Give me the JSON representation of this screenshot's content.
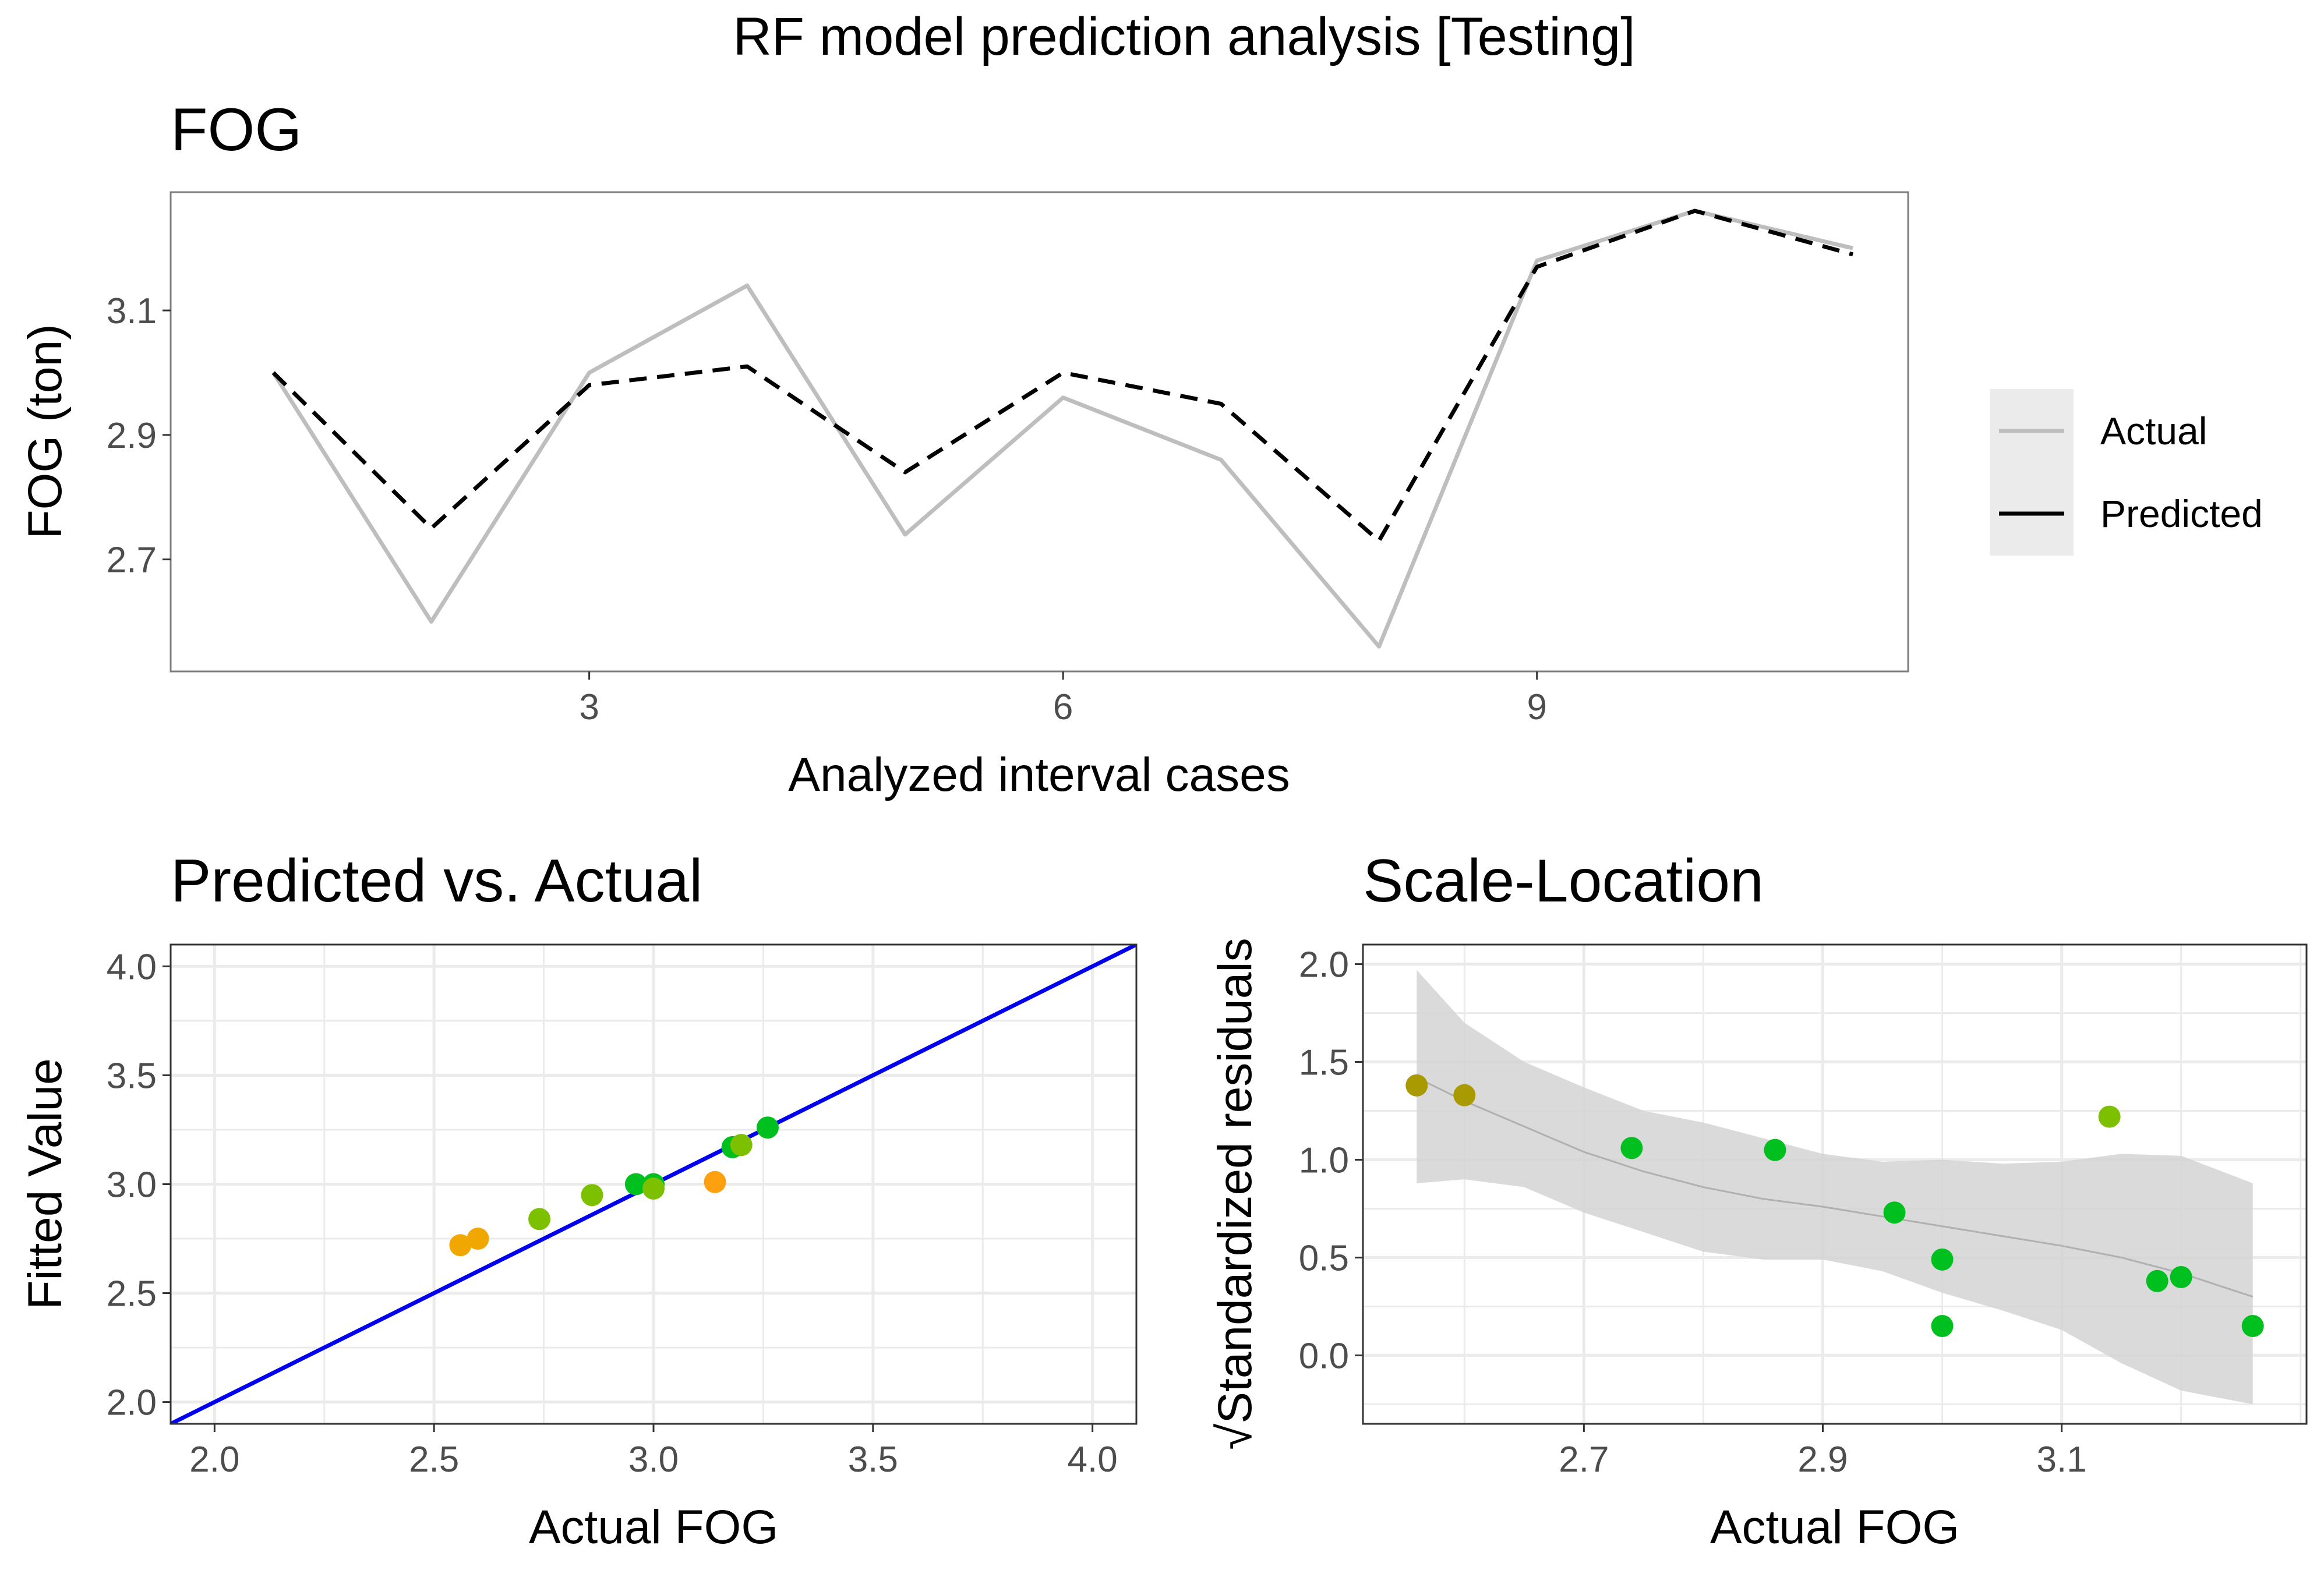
{
  "title": "RF model prediction analysis [Testing]",
  "colors": {
    "actual_line": "#bebebe",
    "predicted_line": "#000000",
    "identity_line": "#0000ee",
    "ribbon": "#d3d3d3",
    "smooth_line": "#b0b0b0"
  },
  "chart_data": [
    {
      "type": "line",
      "title": "FOG",
      "xlabel": "Analyzed interval cases",
      "ylabel": "FOG (ton)",
      "xlim": [
        0.35,
        11.35
      ],
      "ylim": [
        2.52,
        3.29
      ],
      "x_ticks": [
        3,
        6,
        9
      ],
      "x_tick_labels": [
        "3",
        "6",
        "9"
      ],
      "y_ticks": [
        2.7,
        2.9,
        3.1
      ],
      "y_tick_labels": [
        "2.7",
        "2.9",
        "3.1"
      ],
      "x": [
        1,
        2,
        3,
        4,
        5,
        6,
        7,
        8,
        9,
        10,
        11
      ],
      "series": [
        {
          "name": "Actual",
          "style": "solid",
          "values": [
            3.0,
            2.6,
            3.0,
            3.14,
            2.74,
            2.96,
            2.86,
            2.56,
            3.18,
            3.26,
            3.2
          ]
        },
        {
          "name": "Predicted",
          "style": "dashed",
          "values": [
            3.0,
            2.75,
            2.98,
            3.01,
            2.84,
            3.0,
            2.95,
            2.73,
            3.17,
            3.26,
            3.19
          ]
        }
      ],
      "legend": {
        "position": "right",
        "entries": [
          "Actual",
          "Predicted"
        ]
      },
      "grid": true
    },
    {
      "type": "scatter",
      "title": "Predicted vs. Actual",
      "xlabel": "Actual FOG",
      "ylabel": "Fitted Value",
      "xlim": [
        1.9,
        4.1
      ],
      "ylim": [
        1.9,
        4.1
      ],
      "x_ticks": [
        2.0,
        2.5,
        3.0,
        3.5,
        4.0
      ],
      "x_tick_labels": [
        "2.0",
        "2.5",
        "3.0",
        "3.5",
        "4.0"
      ],
      "y_ticks": [
        2.0,
        2.5,
        3.0,
        3.5,
        4.0
      ],
      "y_tick_labels": [
        "2.0",
        "2.5",
        "3.0",
        "3.5",
        "4.0"
      ],
      "reference_line": "y = x",
      "points": [
        {
          "x": 2.56,
          "y": 2.72,
          "color": "#f0a800"
        },
        {
          "x": 2.6,
          "y": 2.75,
          "color": "#f0a800"
        },
        {
          "x": 2.74,
          "y": 2.84,
          "color": "#7cc000"
        },
        {
          "x": 2.86,
          "y": 2.95,
          "color": "#7cc000"
        },
        {
          "x": 2.96,
          "y": 3.0,
          "color": "#00c020"
        },
        {
          "x": 3.0,
          "y": 3.0,
          "color": "#00c020"
        },
        {
          "x": 3.0,
          "y": 2.98,
          "color": "#7cc000"
        },
        {
          "x": 3.14,
          "y": 3.01,
          "color": "#ffa010"
        },
        {
          "x": 3.18,
          "y": 3.17,
          "color": "#00c020"
        },
        {
          "x": 3.2,
          "y": 3.18,
          "color": "#7cc000"
        },
        {
          "x": 3.26,
          "y": 3.26,
          "color": "#00c020"
        }
      ],
      "grid": true
    },
    {
      "type": "scatter",
      "title": "Scale-Location",
      "xlabel": "Actual FOG",
      "ylabel": "Standardized residuals",
      "ylabel_prefix": "√",
      "xlim": [
        2.515,
        3.305
      ],
      "ylim": [
        -0.35,
        2.1
      ],
      "x_ticks": [
        2.7,
        2.9,
        3.1
      ],
      "x_tick_labels": [
        "2.7",
        "2.9",
        "3.1"
      ],
      "y_ticks": [
        0.0,
        0.5,
        1.0,
        1.5,
        2.0
      ],
      "y_tick_labels": [
        "0.0",
        "0.5",
        "1.0",
        "1.5",
        "2.0"
      ],
      "points": [
        {
          "x": 2.56,
          "y": 1.38,
          "color": "#a89a00"
        },
        {
          "x": 2.6,
          "y": 1.33,
          "color": "#a89a00"
        },
        {
          "x": 2.74,
          "y": 1.06,
          "color": "#00c020"
        },
        {
          "x": 2.86,
          "y": 1.05,
          "color": "#00c020"
        },
        {
          "x": 2.96,
          "y": 0.73,
          "color": "#00c020"
        },
        {
          "x": 3.0,
          "y": 0.49,
          "color": "#00c020"
        },
        {
          "x": 3.0,
          "y": 0.15,
          "color": "#00c020"
        },
        {
          "x": 3.14,
          "y": 1.22,
          "color": "#7cc000"
        },
        {
          "x": 3.18,
          "y": 0.38,
          "color": "#00c020"
        },
        {
          "x": 3.2,
          "y": 0.4,
          "color": "#00c020"
        },
        {
          "x": 3.26,
          "y": 0.15,
          "color": "#00c020"
        }
      ],
      "smooth": {
        "x": [
          2.56,
          2.6,
          2.65,
          2.7,
          2.75,
          2.8,
          2.85,
          2.9,
          2.95,
          3.0,
          3.05,
          3.1,
          3.15,
          3.2,
          3.26
        ],
        "fit": [
          1.42,
          1.3,
          1.17,
          1.04,
          0.94,
          0.86,
          0.8,
          0.76,
          0.71,
          0.66,
          0.61,
          0.56,
          0.5,
          0.42,
          0.3
        ],
        "lower": [
          0.88,
          0.9,
          0.86,
          0.73,
          0.63,
          0.53,
          0.49,
          0.49,
          0.43,
          0.32,
          0.23,
          0.13,
          -0.04,
          -0.18,
          -0.25
        ],
        "upper": [
          1.97,
          1.7,
          1.5,
          1.37,
          1.25,
          1.19,
          1.11,
          1.03,
          0.99,
          1.0,
          0.98,
          0.99,
          1.03,
          1.02,
          0.88
        ]
      },
      "grid": true
    }
  ]
}
